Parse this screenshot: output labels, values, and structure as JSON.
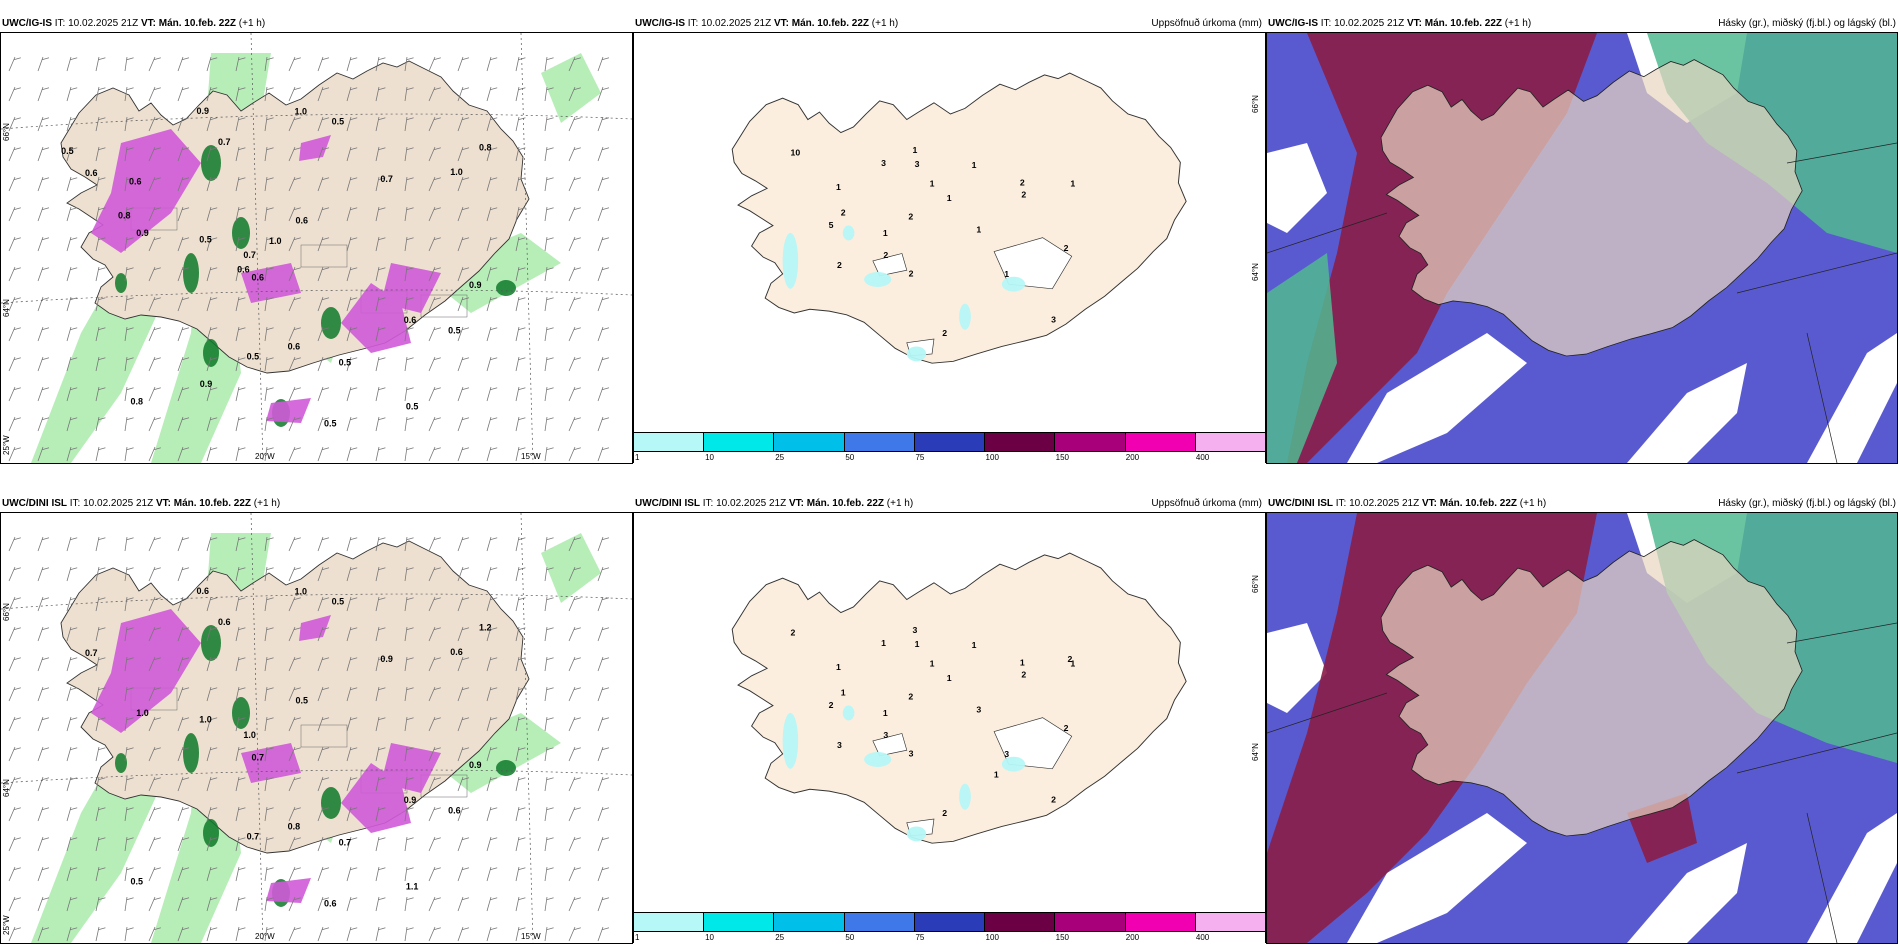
{
  "rows": [
    {
      "model": "UWC/IG-IS",
      "it": "IT: 10.02.2025 21Z",
      "vt": "VT: Mán. 10.feb. 22Z",
      "lead": "(+1 h)"
    },
    {
      "model": "UWC/DINI ISL",
      "it": "IT: 10.02.2025 21Z",
      "vt": "VT: Mán. 10.feb. 22Z",
      "lead": "(+1 h)"
    }
  ],
  "precip_title": "Uppsöfnuð úrkoma (mm)",
  "cloud_title": "Hásky (gr.), miðský (fj.bl.) og lágský (bl.)",
  "axis_labels": {
    "lat66": "66°N",
    "lat64": "64°N",
    "lon25": "25°W",
    "lon20": "20°W",
    "lon15": "15°W"
  },
  "colorbar": {
    "ticks": [
      "1",
      "10",
      "25",
      "50",
      "75",
      "100",
      "150",
      "200",
      "400"
    ],
    "colors": [
      "#b6f7f7",
      "#00e8e8",
      "#00bfe8",
      "#3f78e8",
      "#2a3cb8",
      "#6b0044",
      "#a8007a",
      "#f000b0",
      "#f5b0f0"
    ]
  },
  "colors": {
    "land": "#eee0d0",
    "precip_land": "#fbeede",
    "green_light": "#9fe8a0",
    "green_dark": "#0f7a2a",
    "magenta": "#d05ad8",
    "cloud_high": "#8a1e4a",
    "cloud_mid": "#5a5ad0",
    "cloud_low": "#50b890"
  },
  "precip_points_top": [
    "2",
    "1",
    "2",
    "2",
    "2",
    "2",
    "1",
    "2",
    "3",
    "3",
    "1",
    "1",
    "3",
    "1",
    "1",
    "1",
    "2",
    "5",
    "2",
    "1",
    "10",
    "1",
    "2"
  ],
  "precip_points_bottom": [
    "3",
    "1",
    "2",
    "2",
    "2",
    "1",
    "1",
    "1",
    "1",
    "2",
    "3",
    "1",
    "1",
    "3",
    "1",
    "3",
    "2",
    "2",
    "3",
    "1",
    "2",
    "1",
    "3",
    "2",
    "1"
  ],
  "wind_values_top": [
    "0.5",
    "0.6",
    "0.6",
    "0.7",
    "0.6",
    "0.5",
    "0.8",
    "0.5",
    "0.6",
    "0.9",
    "0.5",
    "0.9",
    "0.8",
    "0.6",
    "0.5",
    "1.0",
    "0.7",
    "0.5",
    "0.9",
    "0.7",
    "1.0",
    "0.5",
    "0.6",
    "0.8",
    "0.9",
    "1.0",
    "0.5",
    "0.6"
  ],
  "wind_values_bottom": [
    "0.6",
    "0.7",
    "0.5",
    "0.6",
    "0.7",
    "0.6",
    "0.5",
    "1.0",
    "0.8",
    "0.9",
    "1.1",
    "1.0",
    "1.2",
    "0.9",
    "0.7",
    "0.6",
    "1.0",
    "0.5",
    "0.6",
    "0.9",
    "1.0",
    "0.7"
  ]
}
